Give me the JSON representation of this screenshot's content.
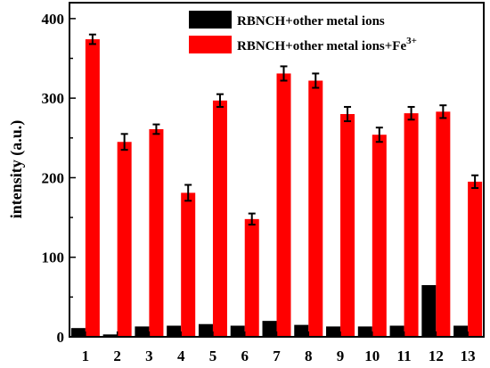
{
  "chart_data": {
    "type": "bar",
    "title": "",
    "xlabel": "",
    "ylabel": "intensity (a.u.)",
    "ylim": [
      0,
      420
    ],
    "yticks": [
      0,
      100,
      200,
      300,
      400
    ],
    "grid": false,
    "legend_position": "top-right",
    "categories": [
      "1",
      "2",
      "3",
      "4",
      "5",
      "6",
      "7",
      "8",
      "9",
      "10",
      "11",
      "12",
      "13"
    ],
    "series": [
      {
        "name": "RBNCH+other metal ions",
        "color": "#000000",
        "values": [
          11,
          3,
          13,
          14,
          16,
          14,
          20,
          15,
          13,
          13,
          14,
          65,
          14
        ],
        "errors": []
      },
      {
        "name_main": "RBNCH+other metal ions+Fe",
        "name_sup": "3+",
        "color": "#ff0000",
        "values": [
          374,
          245,
          261,
          181,
          297,
          148,
          331,
          322,
          280,
          254,
          281,
          283,
          195
        ],
        "errors": [
          6,
          10,
          6,
          10,
          8,
          7,
          9,
          9,
          9,
          9,
          8,
          8,
          8
        ]
      }
    ]
  }
}
